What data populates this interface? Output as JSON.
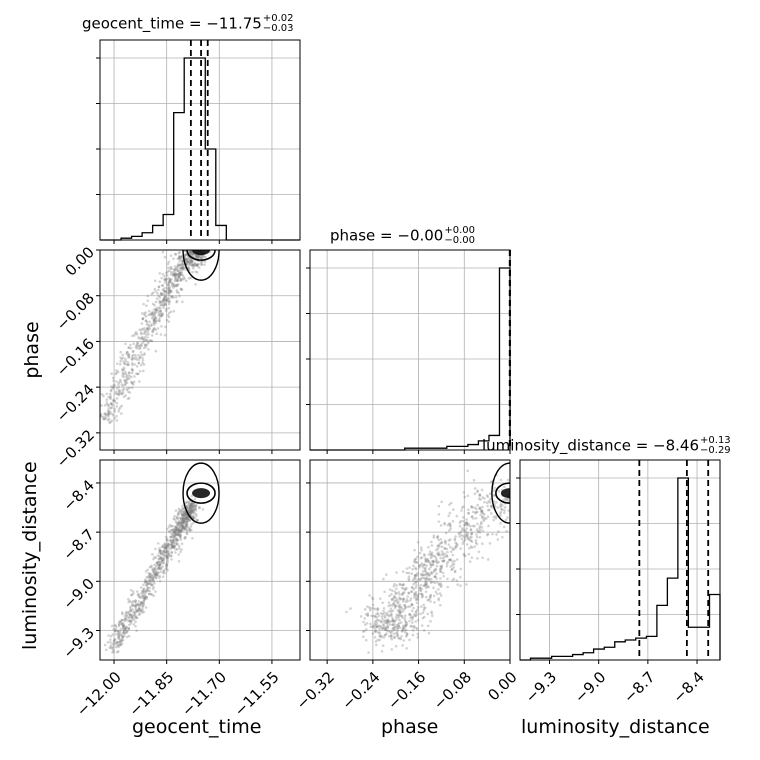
{
  "chart_data": {
    "type": "scatter",
    "subtype": "corner-plot",
    "parameters": [
      {
        "name": "geocent_time",
        "label": "geocent_time",
        "median": -11.75,
        "plus": "0.02",
        "minus": "0.03",
        "title_prefix": "geocent_time = ",
        "title_value": "−11.75",
        "quantiles": [
          -11.781,
          -11.752,
          -11.733
        ],
        "lim": [
          -12.04,
          -11.47
        ],
        "ticks": [
          -12.0,
          -11.85,
          -11.7,
          -11.55
        ],
        "tick_labels": [
          "−12.00",
          "−11.85",
          "−11.70",
          "−11.55"
        ]
      },
      {
        "name": "phase",
        "label": "phase",
        "median": -0.0,
        "plus": "0.00",
        "minus": "0.00",
        "title_prefix": "phase = ",
        "title_value": "−0.00",
        "quantiles": [
          -0.0005,
          -0.0002,
          0.0
        ],
        "lim": [
          -0.35,
          0.0
        ],
        "ticks": [
          -0.32,
          -0.24,
          -0.16,
          -0.08,
          0.0
        ],
        "tick_labels": [
          "−0.32",
          "−0.24",
          "−0.16",
          "−0.08",
          "0.00"
        ]
      },
      {
        "name": "luminosity_distance",
        "label": "luminosity_distance",
        "median": -8.46,
        "plus": "0.13",
        "minus": "0.29",
        "title_prefix": "luminosity_distance = ",
        "title_value": "−8.46",
        "quantiles": [
          -8.752,
          -8.462,
          -8.332
        ],
        "lim": [
          -9.48,
          -8.26
        ],
        "ticks": [
          -9.3,
          -9.0,
          -8.7,
          -8.4
        ],
        "tick_labels": [
          "−9.3",
          "−9.0",
          "−8.7",
          "−8.4"
        ]
      }
    ],
    "histograms": {
      "geocent_time": {
        "edges": [
          -12.04,
          -12.01,
          -11.98,
          -11.95,
          -11.92,
          -11.89,
          -11.86,
          -11.83,
          -11.8,
          -11.77,
          -11.74,
          -11.71,
          -11.68,
          -11.65,
          -11.62,
          -11.59,
          -11.56,
          -11.53,
          -11.5,
          -11.47
        ],
        "counts": [
          0,
          0,
          1,
          2,
          4,
          8,
          14,
          70,
          100,
          100,
          50,
          8,
          0,
          0,
          0,
          0,
          0,
          0,
          0
        ]
      },
      "phase": {
        "edges": [
          -0.35,
          -0.3316,
          -0.3132,
          -0.2947,
          -0.2763,
          -0.2579,
          -0.2395,
          -0.2211,
          -0.2026,
          -0.1842,
          -0.1658,
          -0.1474,
          -0.1289,
          -0.1105,
          -0.0921,
          -0.0737,
          -0.0553,
          -0.0368,
          -0.0184,
          0.0
        ],
        "counts": [
          0,
          0,
          0,
          0,
          0,
          0,
          0,
          0,
          0,
          1,
          1,
          1,
          1,
          2,
          2,
          3,
          5,
          8,
          100
        ]
      },
      "luminosity_distance": {
        "edges": [
          -9.48,
          -9.416,
          -9.352,
          -9.287,
          -9.223,
          -9.159,
          -9.095,
          -9.031,
          -8.966,
          -8.902,
          -8.838,
          -8.774,
          -8.709,
          -8.645,
          -8.581,
          -8.517,
          -8.453,
          -8.389,
          -8.324,
          -8.26
        ],
        "counts": [
          0,
          1,
          1,
          2,
          2,
          3,
          4,
          6,
          7,
          10,
          11,
          12,
          13,
          30,
          45,
          100,
          18,
          18,
          36
        ]
      }
    },
    "grid": true,
    "scatter_color": "#808080"
  }
}
